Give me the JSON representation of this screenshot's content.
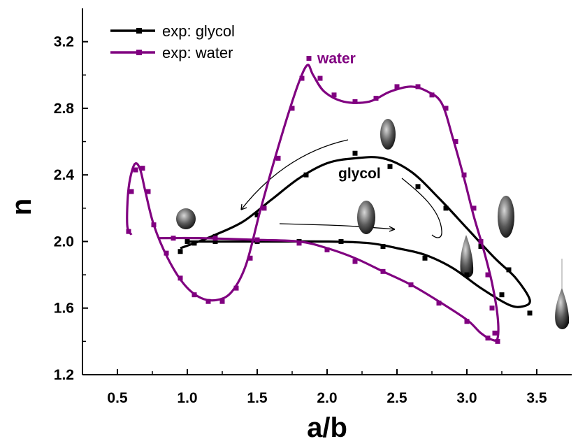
{
  "chart_data": {
    "type": "line",
    "xlabel": "a/b",
    "ylabel": "n",
    "xlim": [
      0.25,
      3.75
    ],
    "ylim": [
      1.2,
      3.4
    ],
    "xticks": [
      "0.5",
      "1.0",
      "1.5",
      "2.0",
      "2.5",
      "3.0",
      "3.5"
    ],
    "yticks": [
      "1.2",
      "1.6",
      "2.0",
      "2.4",
      "2.8",
      "3.2"
    ],
    "grid": false,
    "legend_position": "top-left",
    "annotations": [
      {
        "text": "water",
        "x": 1.93,
        "y": 3.07,
        "color": "#800080"
      },
      {
        "text": "glycol",
        "x": 2.08,
        "y": 2.38,
        "color": "#000000"
      }
    ],
    "series": [
      {
        "name": "exp: glycol",
        "color": "#000000",
        "points": [
          [
            0.95,
            1.94
          ],
          [
            1.05,
            1.99
          ],
          [
            1.2,
            2.03
          ],
          [
            1.5,
            2.16
          ],
          [
            1.85,
            2.4
          ],
          [
            2.2,
            2.53
          ],
          [
            2.45,
            2.45
          ],
          [
            2.65,
            2.33
          ],
          [
            2.85,
            2.2
          ],
          [
            3.1,
            1.97
          ],
          [
            3.3,
            1.83
          ],
          [
            3.45,
            1.57
          ],
          [
            3.25,
            1.68
          ],
          [
            3.0,
            1.8
          ],
          [
            2.7,
            1.9
          ],
          [
            2.4,
            1.97
          ],
          [
            2.1,
            2.0
          ],
          [
            1.8,
            2.0
          ],
          [
            1.5,
            2.0
          ],
          [
            1.2,
            2.0
          ],
          [
            1.0,
            2.0
          ]
        ],
        "curve": [
          [
            0.95,
            1.96
          ],
          [
            1.05,
            1.99
          ],
          [
            1.2,
            2.04
          ],
          [
            1.4,
            2.12
          ],
          [
            1.6,
            2.25
          ],
          [
            1.8,
            2.38
          ],
          [
            2.0,
            2.47
          ],
          [
            2.2,
            2.5
          ],
          [
            2.4,
            2.5
          ],
          [
            2.6,
            2.42
          ],
          [
            2.8,
            2.26
          ],
          [
            3.0,
            2.08
          ],
          [
            3.2,
            1.9
          ],
          [
            3.35,
            1.78
          ],
          [
            3.45,
            1.65
          ],
          [
            3.4,
            1.61
          ],
          [
            3.3,
            1.62
          ],
          [
            3.1,
            1.72
          ],
          [
            2.9,
            1.84
          ],
          [
            2.7,
            1.92
          ],
          [
            2.5,
            1.96
          ],
          [
            2.3,
            1.99
          ],
          [
            2.0,
            2.0
          ],
          [
            1.6,
            2.0
          ],
          [
            1.2,
            2.0
          ],
          [
            1.0,
            2.0
          ]
        ]
      },
      {
        "name": "exp: water",
        "color": "#800080",
        "points": [
          [
            0.58,
            2.06
          ],
          [
            0.6,
            2.3
          ],
          [
            0.63,
            2.43
          ],
          [
            0.68,
            2.44
          ],
          [
            0.72,
            2.3
          ],
          [
            0.76,
            2.1
          ],
          [
            0.85,
            1.93
          ],
          [
            0.95,
            1.78
          ],
          [
            1.05,
            1.68
          ],
          [
            1.15,
            1.64
          ],
          [
            1.25,
            1.64
          ],
          [
            1.35,
            1.72
          ],
          [
            1.45,
            1.9
          ],
          [
            1.55,
            2.2
          ],
          [
            1.65,
            2.5
          ],
          [
            1.75,
            2.8
          ],
          [
            1.82,
            2.98
          ],
          [
            1.87,
            3.1
          ],
          [
            1.95,
            2.98
          ],
          [
            2.05,
            2.88
          ],
          [
            2.2,
            2.84
          ],
          [
            2.35,
            2.86
          ],
          [
            2.5,
            2.93
          ],
          [
            2.65,
            2.93
          ],
          [
            2.75,
            2.88
          ],
          [
            2.85,
            2.8
          ],
          [
            2.92,
            2.6
          ],
          [
            2.98,
            2.4
          ],
          [
            3.05,
            2.2
          ],
          [
            3.1,
            2.0
          ],
          [
            3.15,
            1.8
          ],
          [
            3.18,
            1.6
          ],
          [
            3.2,
            1.45
          ],
          [
            3.22,
            1.4
          ],
          [
            3.15,
            1.42
          ],
          [
            3.0,
            1.52
          ],
          [
            2.8,
            1.63
          ],
          [
            2.6,
            1.74
          ],
          [
            2.4,
            1.82
          ],
          [
            2.2,
            1.88
          ],
          [
            2.0,
            1.95
          ],
          [
            1.8,
            1.99
          ],
          [
            1.5,
            2.01
          ],
          [
            1.2,
            2.02
          ],
          [
            0.9,
            2.02
          ]
        ],
        "curve": [
          [
            0.8,
            2.02
          ],
          [
            1.1,
            2.02
          ],
          [
            1.5,
            2.01
          ],
          [
            1.8,
            2.0
          ],
          [
            2.0,
            1.96
          ],
          [
            2.2,
            1.9
          ],
          [
            2.4,
            1.82
          ],
          [
            2.6,
            1.74
          ],
          [
            2.8,
            1.64
          ],
          [
            3.0,
            1.53
          ],
          [
            3.1,
            1.45
          ],
          [
            3.18,
            1.41
          ],
          [
            3.22,
            1.42
          ],
          [
            3.22,
            1.55
          ],
          [
            3.18,
            1.75
          ],
          [
            3.12,
            1.95
          ],
          [
            3.05,
            2.15
          ],
          [
            2.98,
            2.38
          ],
          [
            2.9,
            2.62
          ],
          [
            2.82,
            2.83
          ],
          [
            2.72,
            2.9
          ],
          [
            2.6,
            2.93
          ],
          [
            2.45,
            2.9
          ],
          [
            2.3,
            2.84
          ],
          [
            2.12,
            2.84
          ],
          [
            1.98,
            2.9
          ],
          [
            1.9,
            3.0
          ],
          [
            1.86,
            3.06
          ],
          [
            1.8,
            2.96
          ],
          [
            1.72,
            2.76
          ],
          [
            1.62,
            2.48
          ],
          [
            1.52,
            2.18
          ],
          [
            1.42,
            1.86
          ],
          [
            1.32,
            1.7
          ],
          [
            1.22,
            1.65
          ],
          [
            1.1,
            1.66
          ],
          [
            0.98,
            1.74
          ],
          [
            0.86,
            1.9
          ],
          [
            0.76,
            2.1
          ],
          [
            0.7,
            2.3
          ],
          [
            0.66,
            2.44
          ],
          [
            0.62,
            2.46
          ],
          [
            0.58,
            2.32
          ],
          [
            0.57,
            2.1
          ],
          [
            0.6,
            2.04
          ]
        ]
      }
    ]
  }
}
